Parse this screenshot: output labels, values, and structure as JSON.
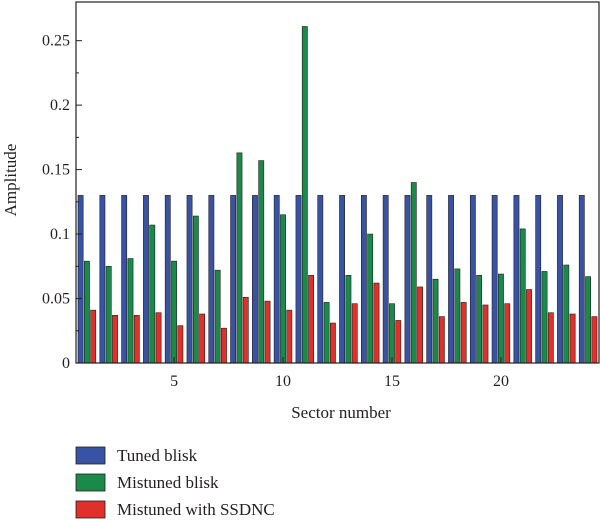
{
  "chart_data": {
    "type": "bar",
    "xlabel": "Sector number",
    "ylabel": "Amplitude",
    "xlim": [
      0.5,
      24.5
    ],
    "ylim": [
      0,
      0.28
    ],
    "x_ticks": [
      5,
      10,
      15,
      20
    ],
    "y_ticks": [
      0,
      0.05,
      0.1,
      0.15,
      0.2,
      0.25
    ],
    "y_tick_labels": [
      "0",
      "0.05",
      "0.1",
      "0.15",
      "0.2",
      "0.25"
    ],
    "grid": false,
    "legend_position": "below",
    "categories": [
      1,
      2,
      3,
      4,
      5,
      6,
      7,
      8,
      9,
      10,
      11,
      12,
      13,
      14,
      15,
      16,
      17,
      18,
      19,
      20,
      21,
      22,
      23,
      24
    ],
    "series": [
      {
        "name": "Tuned blisk",
        "color": "#3953a4",
        "values": [
          0.13,
          0.13,
          0.13,
          0.13,
          0.13,
          0.13,
          0.13,
          0.13,
          0.13,
          0.13,
          0.13,
          0.13,
          0.13,
          0.13,
          0.13,
          0.13,
          0.13,
          0.13,
          0.13,
          0.13,
          0.13,
          0.13,
          0.13,
          0.13
        ]
      },
      {
        "name": "Mistuned blisk",
        "color": "#1a8a4a",
        "values": [
          0.079,
          0.075,
          0.081,
          0.107,
          0.079,
          0.114,
          0.072,
          0.163,
          0.157,
          0.115,
          0.261,
          0.047,
          0.068,
          0.1,
          0.046,
          0.14,
          0.065,
          0.073,
          0.068,
          0.069,
          0.104,
          0.071,
          0.076,
          0.067
        ]
      },
      {
        "name": "Mistuned with SSDNC",
        "color": "#e0302a",
        "values": [
          0.041,
          0.037,
          0.037,
          0.039,
          0.029,
          0.038,
          0.027,
          0.051,
          0.048,
          0.041,
          0.068,
          0.031,
          0.046,
          0.062,
          0.033,
          0.059,
          0.036,
          0.047,
          0.045,
          0.046,
          0.057,
          0.039,
          0.038,
          0.036
        ]
      }
    ]
  }
}
